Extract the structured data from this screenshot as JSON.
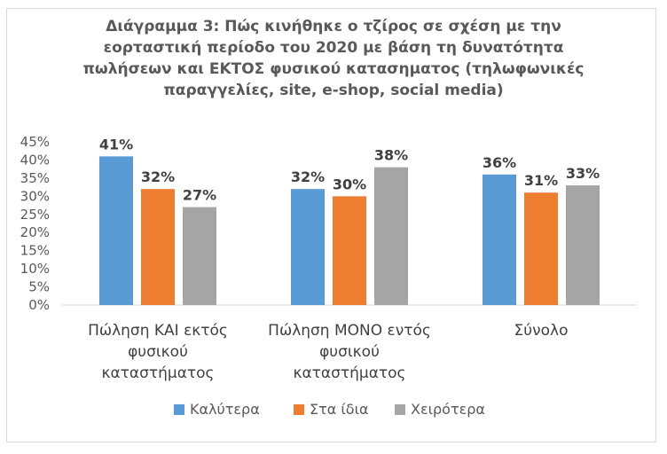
{
  "chart_data": {
    "type": "bar",
    "title_lines": [
      "Διάγραμμα 3: Πώς κινήθηκε ο τζίρος σε σχέση με την",
      "εορταστική περίοδο του 2020 με βάση τη δυνατότητα",
      "πωλήσεων και ΕΚΤΟΣ φυσικού κατασηματος (τηλωφωνικές",
      "παραγγελίες, site, e-shop, social media)"
    ],
    "categories": [
      [
        "Πώληση ΚΑΙ εκτός",
        "φυσικού",
        "καταστήματος"
      ],
      [
        "Πώληση ΜΟΝΟ εντός",
        "φυσικού",
        "καταστήματος"
      ],
      [
        "Σύνολο"
      ]
    ],
    "series": [
      {
        "name": "Καλύτερα",
        "color": "#5b9bd5",
        "values": [
          41,
          32,
          36
        ],
        "labels": [
          "41%",
          "32%",
          "36%"
        ]
      },
      {
        "name": "Στα ίδια",
        "color": "#ed7d31",
        "values": [
          32,
          30,
          31
        ],
        "labels": [
          "32%",
          "30%",
          "31%"
        ]
      },
      {
        "name": "Χειρότερα",
        "color": "#a5a5a5",
        "values": [
          27,
          38,
          33
        ],
        "labels": [
          "27%",
          "38%",
          "33%"
        ]
      }
    ],
    "ylim": [
      0,
      45
    ],
    "yticks": [
      {
        "value": 0,
        "label": "0%"
      },
      {
        "value": 5,
        "label": "5%"
      },
      {
        "value": 10,
        "label": "10%"
      },
      {
        "value": 15,
        "label": "15%"
      },
      {
        "value": 20,
        "label": "20%"
      },
      {
        "value": 25,
        "label": "25%"
      },
      {
        "value": 30,
        "label": "30%"
      },
      {
        "value": 35,
        "label": "35%"
      },
      {
        "value": 40,
        "label": "40%"
      },
      {
        "value": 45,
        "label": "45%"
      }
    ],
    "grid": false,
    "legend_position": "bottom"
  }
}
